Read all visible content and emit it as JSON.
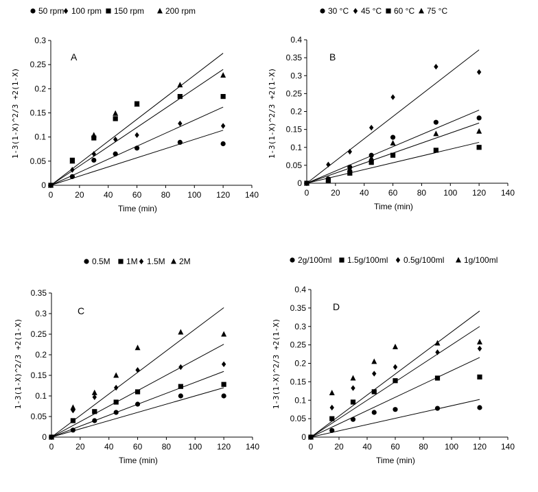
{
  "chart_data": [
    {
      "type": "scatter",
      "panel": "A",
      "xlabel": "Time (min)",
      "ylabel": "1-3(1-X)^2/3 +2(1-X)",
      "xlim": [
        0,
        140
      ],
      "ylim": [
        0,
        0.3
      ],
      "xticks": [
        "0",
        "20",
        "40",
        "60",
        "80",
        "100",
        "120",
        "140"
      ],
      "yticks": [
        "0",
        "0.05",
        "0.1",
        "0.15",
        "0.2",
        "0.25",
        "0.3"
      ],
      "series": [
        {
          "name": "50 rpm",
          "marker": "circle",
          "x": [
            0,
            15,
            30,
            45,
            60,
            90,
            120
          ],
          "y": [
            0,
            0.018,
            0.052,
            0.065,
            0.077,
            0.089,
            0.086
          ],
          "fit_slope": 0.00095
        },
        {
          "name": "100 rpm",
          "marker": "diamond",
          "x": [
            0,
            15,
            30,
            45,
            60,
            90,
            120
          ],
          "y": [
            0,
            0.032,
            0.065,
            0.095,
            0.104,
            0.128,
            0.123
          ],
          "fit_slope": 0.00135
        },
        {
          "name": "150 rpm",
          "marker": "square",
          "x": [
            0,
            15,
            30,
            45,
            60,
            90,
            120
          ],
          "y": [
            0,
            0.052,
            0.098,
            0.138,
            0.169,
            0.184,
            0.184
          ],
          "fit_slope": 0.002
        },
        {
          "name": "200 rpm",
          "marker": "triangle",
          "x": [
            0,
            15,
            30,
            45,
            60,
            90,
            120
          ],
          "y": [
            0,
            0.05,
            0.104,
            0.149,
            0.168,
            0.208,
            0.228
          ],
          "fit_slope": 0.00228
        }
      ]
    },
    {
      "type": "scatter",
      "panel": "B",
      "xlabel": "Time (min)",
      "ylabel": "1-3(1-X)^2/3 +2(1-X)",
      "xlim": [
        0,
        140
      ],
      "ylim": [
        0,
        0.4
      ],
      "xticks": [
        "0",
        "20",
        "40",
        "60",
        "80",
        "100",
        "120",
        "140"
      ],
      "yticks": [
        "0",
        "0.05",
        "0.1",
        "0.15",
        "0.2",
        "0.25",
        "0.3",
        "0.35",
        "0.4"
      ],
      "series": [
        {
          "name": "30 °C",
          "marker": "circle",
          "x": [
            0,
            15,
            30,
            45,
            60,
            90,
            120
          ],
          "y": [
            0,
            0.012,
            0.045,
            0.078,
            0.128,
            0.17,
            0.182
          ],
          "fit_slope": 0.0014
        },
        {
          "name": "45 °C",
          "marker": "diamond",
          "x": [
            0,
            15,
            30,
            45,
            60,
            90,
            120
          ],
          "y": [
            0,
            0.052,
            0.088,
            0.155,
            0.24,
            0.325,
            0.31
          ],
          "fit_slope": 0.0031
        },
        {
          "name": "60 °C",
          "marker": "square",
          "x": [
            0,
            15,
            30,
            45,
            60,
            90,
            120
          ],
          "y": [
            0,
            0.008,
            0.028,
            0.058,
            0.078,
            0.092,
            0.1
          ],
          "fit_slope": 0.00095
        },
        {
          "name": "75 °C",
          "marker": "triangle",
          "x": [
            0,
            15,
            30,
            45,
            60,
            90,
            120
          ],
          "y": [
            0,
            0.01,
            0.04,
            0.07,
            0.112,
            0.138,
            0.145
          ],
          "fit_slope": 0.0017
        }
      ]
    },
    {
      "type": "scatter",
      "panel": "C",
      "xlabel": "Time (min)",
      "ylabel": "1-3(1-X)^2/3 +2(1-X)",
      "xlim": [
        0,
        140
      ],
      "ylim": [
        0,
        0.35
      ],
      "xticks": [
        "0",
        "20",
        "40",
        "60",
        "80",
        "100",
        "120",
        "140"
      ],
      "yticks": [
        "0",
        "0.05",
        "0.1",
        "0.15",
        "0.2",
        "0.25",
        "0.3",
        "0.35"
      ],
      "series": [
        {
          "name": "0.5M",
          "marker": "circle",
          "x": [
            0,
            15,
            30,
            45,
            60,
            90,
            120
          ],
          "y": [
            0,
            0.017,
            0.04,
            0.06,
            0.08,
            0.1,
            0.1
          ],
          "fit_slope": 0.001
        },
        {
          "name": "1M",
          "marker": "square",
          "x": [
            0,
            15,
            30,
            45,
            60,
            90,
            120
          ],
          "y": [
            0,
            0.04,
            0.062,
            0.085,
            0.11,
            0.123,
            0.128
          ],
          "fit_slope": 0.00133
        },
        {
          "name": "1.5M",
          "marker": "diamond",
          "x": [
            0,
            15,
            30,
            45,
            60,
            90,
            120
          ],
          "y": [
            0,
            0.065,
            0.097,
            0.12,
            0.163,
            0.17,
            0.177
          ],
          "fit_slope": 0.00188
        },
        {
          "name": "2M",
          "marker": "triangle",
          "x": [
            0,
            15,
            30,
            45,
            60,
            90,
            120
          ],
          "y": [
            0,
            0.072,
            0.108,
            0.15,
            0.217,
            0.255,
            0.25
          ],
          "fit_slope": 0.00262
        }
      ]
    },
    {
      "type": "scatter",
      "panel": "D",
      "xlabel": "Time (min)",
      "ylabel": "1-3(1-X)^2/3 +2(1-X)",
      "xlim": [
        0,
        140
      ],
      "ylim": [
        0,
        0.4
      ],
      "xticks": [
        "0",
        "20",
        "40",
        "60",
        "80",
        "100",
        "120",
        "140"
      ],
      "yticks": [
        "0",
        "0.05",
        "0.1",
        "0.15",
        "0.2",
        "0.25",
        "0.3",
        "0.35",
        "0.4"
      ],
      "series": [
        {
          "name": "2g/100ml",
          "marker": "circle",
          "x": [
            0,
            15,
            30,
            45,
            60,
            90,
            120
          ],
          "y": [
            0,
            0.018,
            0.048,
            0.067,
            0.075,
            0.078,
            0.08
          ],
          "fit_slope": 0.00085
        },
        {
          "name": "1.5g/100ml",
          "marker": "square",
          "x": [
            0,
            15,
            30,
            45,
            60,
            90,
            120
          ],
          "y": [
            0,
            0.05,
            0.095,
            0.123,
            0.153,
            0.16,
            0.163
          ],
          "fit_slope": 0.0018
        },
        {
          "name": "0.5g/100ml",
          "marker": "diamond",
          "x": [
            0,
            15,
            30,
            45,
            60,
            90,
            120
          ],
          "y": [
            0,
            0.08,
            0.133,
            0.172,
            0.19,
            0.23,
            0.24
          ],
          "fit_slope": 0.0025
        },
        {
          "name": "1g/100ml",
          "marker": "triangle",
          "x": [
            0,
            15,
            30,
            45,
            60,
            90,
            120
          ],
          "y": [
            0,
            0.12,
            0.16,
            0.205,
            0.245,
            0.255,
            0.258
          ],
          "fit_slope": 0.00285
        }
      ]
    }
  ]
}
